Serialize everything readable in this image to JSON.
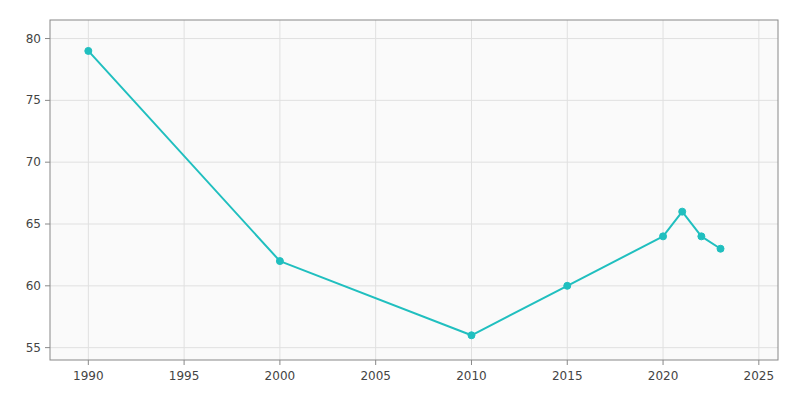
{
  "chart_data": {
    "type": "line",
    "x": [
      1990,
      2000,
      2010,
      2015,
      2020,
      2021,
      2022,
      2023
    ],
    "values": [
      79,
      62,
      56,
      60,
      64,
      66,
      64,
      63
    ],
    "color": "#20BFBF",
    "marker": "circle",
    "xlim": [
      1988,
      2026
    ],
    "ylim": [
      54.0,
      81.5
    ],
    "xticks": [
      1990,
      1995,
      2000,
      2005,
      2010,
      2015,
      2020,
      2025
    ],
    "yticks": [
      55,
      60,
      65,
      70,
      75,
      80
    ],
    "grid": true
  }
}
